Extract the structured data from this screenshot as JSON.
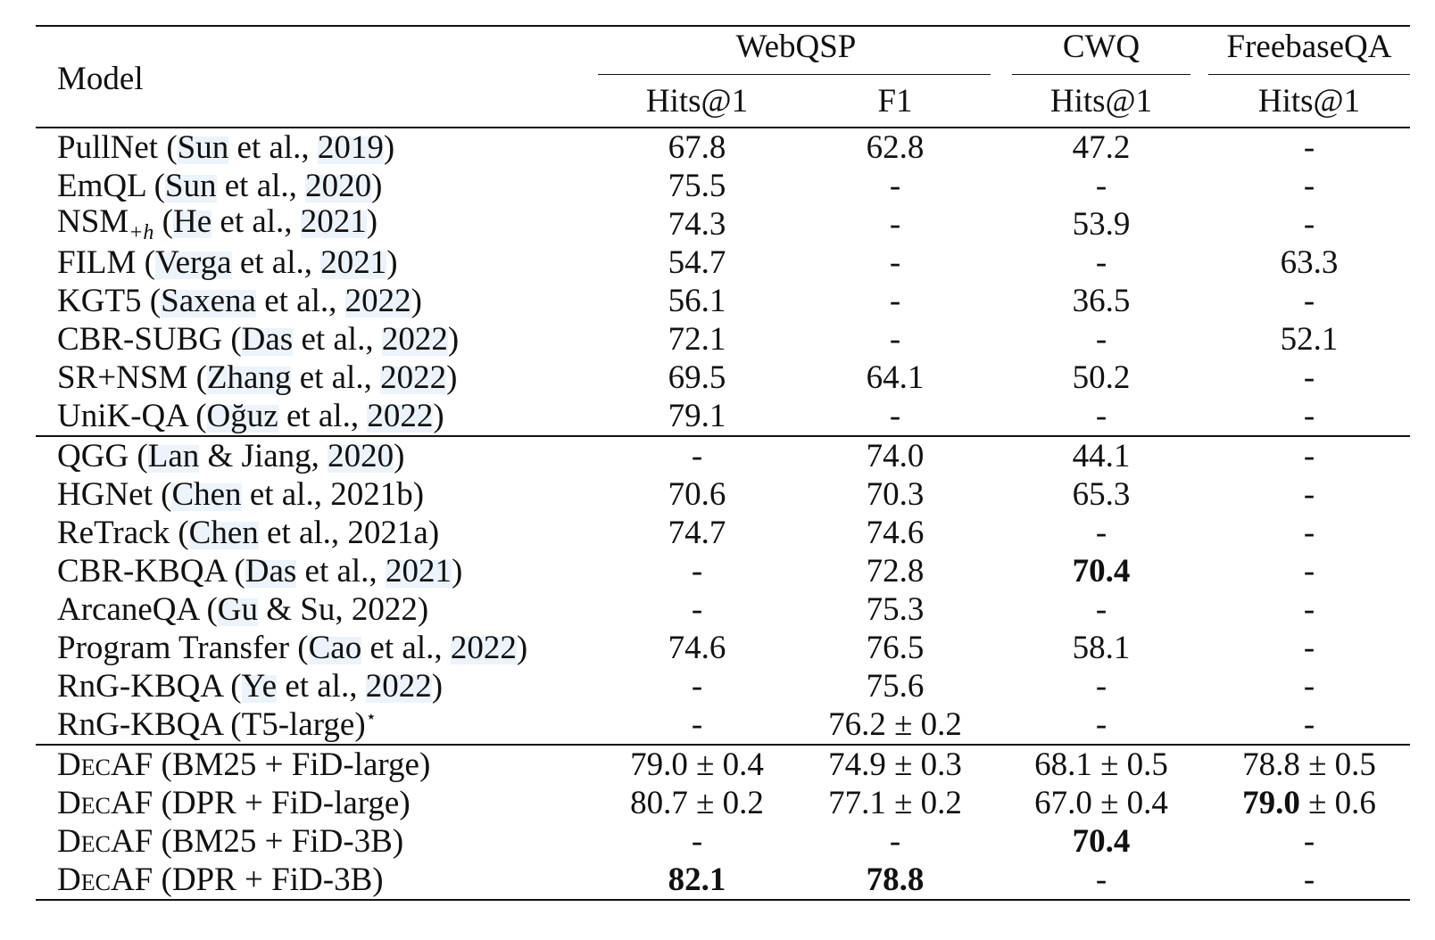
{
  "header": {
    "model": "Model",
    "groups": [
      "WebQSP",
      "CWQ",
      "FreebaseQA"
    ],
    "metrics": [
      "Hits@1",
      "F1",
      "Hits@1",
      "Hits@1"
    ]
  },
  "sections": [
    {
      "rows": [
        {
          "name": "PullNet",
          "cite_a": "Sun",
          "cite_m": " et al., ",
          "cite_b": "2019",
          "suffix": "",
          "w_hits": "67.8",
          "w_f1": "62.8",
          "cwq": "47.2",
          "fbqa": "-"
        },
        {
          "name": "EmQL",
          "cite_a": "Sun",
          "cite_m": " et al., ",
          "cite_b": "2020",
          "suffix": "",
          "w_hits": "75.5",
          "w_f1": "-",
          "cwq": "-",
          "fbqa": "-"
        },
        {
          "name": "NSM",
          "sub": "+h",
          "cite_a": "He",
          "cite_m": " et al., ",
          "cite_b": "2021",
          "suffix": "",
          "w_hits": "74.3",
          "w_f1": "-",
          "cwq": "53.9",
          "fbqa": "-"
        },
        {
          "name": "FILM",
          "cite_a": "Verga",
          "cite_m": " et al., ",
          "cite_b": "2021",
          "suffix": "",
          "w_hits": "54.7",
          "w_f1": "-",
          "cwq": "-",
          "fbqa": "63.3"
        },
        {
          "name": "KGT5",
          "cite_a": "Saxena",
          "cite_m": " et al., ",
          "cite_b": "2022",
          "suffix": "",
          "w_hits": "56.1",
          "w_f1": "-",
          "cwq": "36.5",
          "fbqa": "-"
        },
        {
          "name": "CBR-SUBG",
          "cite_a": "Das",
          "cite_m": " et al., ",
          "cite_b": "2022",
          "suffix": "",
          "w_hits": "72.1",
          "w_f1": "-",
          "cwq": "-",
          "fbqa": "52.1"
        },
        {
          "name": "SR+NSM",
          "cite_a": "Zhang",
          "cite_m": " et al., ",
          "cite_b": "2022",
          "suffix": "",
          "w_hits": "69.5",
          "w_f1": "64.1",
          "cwq": "50.2",
          "fbqa": "-"
        },
        {
          "name": "UniK-QA",
          "cite_a": "Oğuz",
          "cite_m": " et al., ",
          "cite_b": "2022",
          "suffix": "",
          "w_hits": "79.1",
          "w_f1": "-",
          "cwq": "-",
          "fbqa": "-"
        }
      ]
    },
    {
      "rows": [
        {
          "name": "QGG",
          "cite_a": "Lan",
          "cite_m": " & Jiang, ",
          "cite_b": "2020",
          "suffix": "",
          "w_hits": "-",
          "w_f1": "74.0",
          "cwq": "44.1",
          "fbqa": "-"
        },
        {
          "name": "HGNet",
          "cite_a": "Chen",
          "cite_m": " et al., 2021b",
          "cite_b": "",
          "suffix": "",
          "w_hits": "70.6",
          "w_f1": "70.3",
          "cwq": "65.3",
          "fbqa": "-"
        },
        {
          "name": "ReTrack",
          "cite_a": "Chen",
          "cite_m": " et al., 2021a",
          "cite_b": "",
          "suffix": "",
          "w_hits": "74.7",
          "w_f1": "74.6",
          "cwq": "-",
          "fbqa": "-"
        },
        {
          "name": "CBR-KBQA",
          "cite_a": "Das",
          "cite_m": " et al., ",
          "cite_b": "2021",
          "suffix": "",
          "w_hits": "-",
          "w_f1": "72.8",
          "cwq": "70.4",
          "cwq_bold": true,
          "fbqa": "-"
        },
        {
          "name": "ArcaneQA",
          "cite_a": "Gu",
          "cite_m": " & Su, 2022",
          "cite_b": "",
          "suffix": "",
          "w_hits": "-",
          "w_f1": "75.3",
          "cwq": "-",
          "fbqa": "-"
        },
        {
          "name": "Program Transfer",
          "cite_a": "Cao",
          "cite_m": " et al., ",
          "cite_b": "2022",
          "suffix": "",
          "w_hits": "74.6",
          "w_f1": "76.5",
          "cwq": "58.1",
          "fbqa": "-"
        },
        {
          "name": "RnG-KBQA",
          "cite_a": "Ye",
          "cite_m": " et al., ",
          "cite_b": "2022",
          "suffix": "",
          "w_hits": "-",
          "w_f1": "75.6",
          "cwq": "-",
          "fbqa": "-"
        },
        {
          "name": "RnG-KBQA",
          "plain_paren": "T5-large",
          "star": "⋆",
          "w_hits": "-",
          "w_f1": "76.2 ± 0.2",
          "cwq": "-",
          "fbqa": "-"
        }
      ]
    },
    {
      "rows": [
        {
          "name": "DecAF",
          "plain_paren": "BM25 + FiD-large",
          "w_hits": "79.0 ± 0.4",
          "w_f1": "74.9 ± 0.3",
          "cwq": "68.1 ± 0.5",
          "fbqa": "78.8 ± 0.5"
        },
        {
          "name": "DecAF",
          "plain_paren": "DPR + FiD-large",
          "w_hits": "80.7 ± 0.2",
          "w_f1": "77.1 ± 0.2",
          "cwq": "67.0 ± 0.4",
          "fbqa_bold_part": "79.0",
          "fbqa": " ± 0.6"
        },
        {
          "name": "DecAF",
          "plain_paren": "BM25 + FiD-3B",
          "w_hits": "-",
          "w_f1": "-",
          "cwq": "70.4",
          "cwq_bold": true,
          "fbqa": "-"
        },
        {
          "name": "DecAF",
          "plain_paren": "DPR + FiD-3B",
          "w_hits": "82.1",
          "w_hits_bold": true,
          "w_f1": "78.8",
          "w_f1_bold": true,
          "cwq": "-",
          "fbqa": "-"
        }
      ]
    }
  ]
}
